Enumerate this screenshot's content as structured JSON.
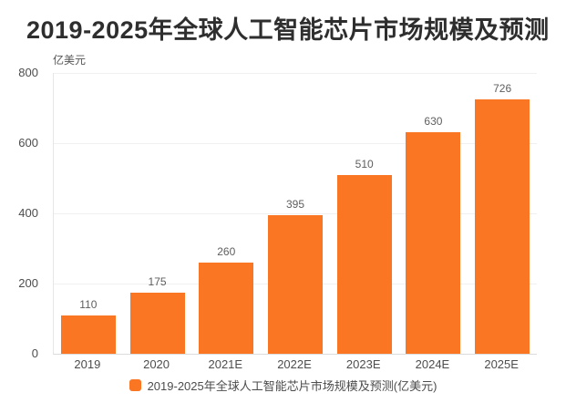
{
  "title": "2019-2025年全球人工智能芯片市场规模及预测",
  "unit_label": "亿美元",
  "legend": {
    "label": "2019-2025年全球人工智能芯片市场规模及预测(亿美元)"
  },
  "colors": {
    "bar": "#FA7623",
    "title_text": "#2E2E2E",
    "axis_text": "#4D4D4D",
    "value_label_text": "#5E5E5E",
    "gridline": "#F0F0F0",
    "axis_line": "#DCDCDC",
    "background": "#FFFFFF"
  },
  "chart_data": {
    "type": "bar",
    "categories": [
      "2019",
      "2020",
      "2021E",
      "2022E",
      "2023E",
      "2024E",
      "2025E"
    ],
    "values": [
      110,
      175,
      260,
      395,
      510,
      630,
      726
    ],
    "title": "2019-2025年全球人工智能芯片市场规模及预测",
    "xlabel": "",
    "ylabel": "亿美元",
    "ylim": [
      0,
      800
    ],
    "yticks": [
      0,
      200,
      400,
      600,
      800
    ],
    "grid": true,
    "bar_color": "#FA7623",
    "legend_entries": [
      "2019-2025年全球人工智能芯片市场规模及预测(亿美元)"
    ],
    "legend_position": "bottom",
    "value_labels_shown": true
  }
}
